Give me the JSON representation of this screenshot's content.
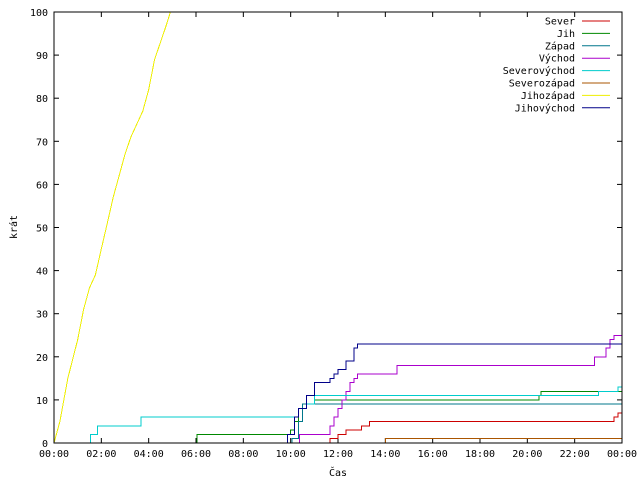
{
  "chart_data": {
    "type": "line",
    "title": "",
    "xlabel": "Čas",
    "ylabel": "krát",
    "xlim": [
      "00:00",
      "24:00"
    ],
    "ylim": [
      0,
      100
    ],
    "x_tick_labels": [
      "00:00",
      "02:00",
      "04:00",
      "06:00",
      "08:00",
      "10:00",
      "12:00",
      "14:00",
      "16:00",
      "18:00",
      "20:00",
      "22:00",
      "00:00"
    ],
    "y_tick_labels": [
      "0",
      "10",
      "20",
      "30",
      "40",
      "50",
      "60",
      "70",
      "80",
      "90",
      "100"
    ],
    "grid": false,
    "legend_position": "top-right",
    "series": [
      {
        "name": "Sever",
        "color": "#cc0000",
        "step": true,
        "points": [
          [
            "11:00",
            0
          ],
          [
            "11:40",
            1
          ],
          [
            "12:00",
            2
          ],
          [
            "12:20",
            3
          ],
          [
            "13:00",
            4
          ],
          [
            "13:20",
            5
          ],
          [
            "23:40",
            6
          ],
          [
            "23:50",
            7
          ],
          [
            "24:00",
            7
          ]
        ]
      },
      {
        "name": "Jih",
        "color": "#008800",
        "step": true,
        "points": [
          [
            "06:00",
            0
          ],
          [
            "06:02",
            2
          ],
          [
            "10:00",
            3
          ],
          [
            "10:10",
            5
          ],
          [
            "10:20",
            8
          ],
          [
            "10:40",
            9
          ],
          [
            "11:00",
            10
          ],
          [
            "20:30",
            11
          ],
          [
            "20:35",
            12
          ],
          [
            "24:00",
            12
          ]
        ]
      },
      {
        "name": "Západ",
        "color": "#00778b",
        "step": true,
        "points": [
          [
            "10:00",
            0
          ],
          [
            "10:03",
            1
          ],
          [
            "10:20",
            5
          ],
          [
            "10:30",
            9
          ],
          [
            "24:00",
            9
          ]
        ]
      },
      {
        "name": "Východ",
        "color": "#aa00cc",
        "step": true,
        "points": [
          [
            "10:20",
            0
          ],
          [
            "10:22",
            2
          ],
          [
            "11:40",
            4
          ],
          [
            "11:50",
            6
          ],
          [
            "12:00",
            8
          ],
          [
            "12:10",
            10
          ],
          [
            "12:20",
            12
          ],
          [
            "12:30",
            14
          ],
          [
            "12:40",
            15
          ],
          [
            "12:50",
            16
          ],
          [
            "14:30",
            18
          ],
          [
            "22:50",
            20
          ],
          [
            "23:20",
            22
          ],
          [
            "23:30",
            24
          ],
          [
            "23:40",
            25
          ],
          [
            "24:00",
            25
          ]
        ]
      },
      {
        "name": "Severovýchod",
        "color": "#00cccc",
        "step": true,
        "points": [
          [
            "01:30",
            0
          ],
          [
            "01:32",
            2
          ],
          [
            "01:50",
            4
          ],
          [
            "03:40",
            6
          ],
          [
            "10:10",
            6
          ],
          [
            "10:20",
            8
          ],
          [
            "10:40",
            9
          ],
          [
            "11:00",
            11
          ],
          [
            "23:00",
            12
          ],
          [
            "23:50",
            13
          ],
          [
            "24:00",
            14
          ]
        ]
      },
      {
        "name": "Severozápad",
        "color": "#aa5500",
        "step": true,
        "points": [
          [
            "13:50",
            0
          ],
          [
            "14:00",
            1
          ],
          [
            "24:00",
            1
          ]
        ]
      },
      {
        "name": "Jihozápad",
        "color": "#eeee00",
        "step": false,
        "points": [
          [
            "00:00",
            0
          ],
          [
            "00:15",
            5
          ],
          [
            "00:35",
            15
          ],
          [
            "01:00",
            24
          ],
          [
            "01:15",
            31
          ],
          [
            "01:30",
            36
          ],
          [
            "01:45",
            39
          ],
          [
            "02:00",
            45
          ],
          [
            "02:15",
            51
          ],
          [
            "02:30",
            57
          ],
          [
            "02:45",
            62
          ],
          [
            "03:00",
            67
          ],
          [
            "03:15",
            71
          ],
          [
            "03:30",
            74
          ],
          [
            "03:45",
            77
          ],
          [
            "04:00",
            82
          ],
          [
            "04:15",
            89
          ],
          [
            "04:30",
            93
          ],
          [
            "04:45",
            97
          ],
          [
            "04:55",
            100
          ]
        ]
      },
      {
        "name": "Jihovýchod",
        "color": "#000088",
        "step": true,
        "points": [
          [
            "09:50",
            0
          ],
          [
            "09:52",
            2
          ],
          [
            "10:10",
            6
          ],
          [
            "10:20",
            8
          ],
          [
            "10:40",
            11
          ],
          [
            "11:00",
            14
          ],
          [
            "11:40",
            15
          ],
          [
            "11:50",
            16
          ],
          [
            "12:00",
            17
          ],
          [
            "12:20",
            19
          ],
          [
            "12:40",
            22
          ],
          [
            "12:50",
            23
          ],
          [
            "24:00",
            23
          ]
        ]
      }
    ]
  }
}
